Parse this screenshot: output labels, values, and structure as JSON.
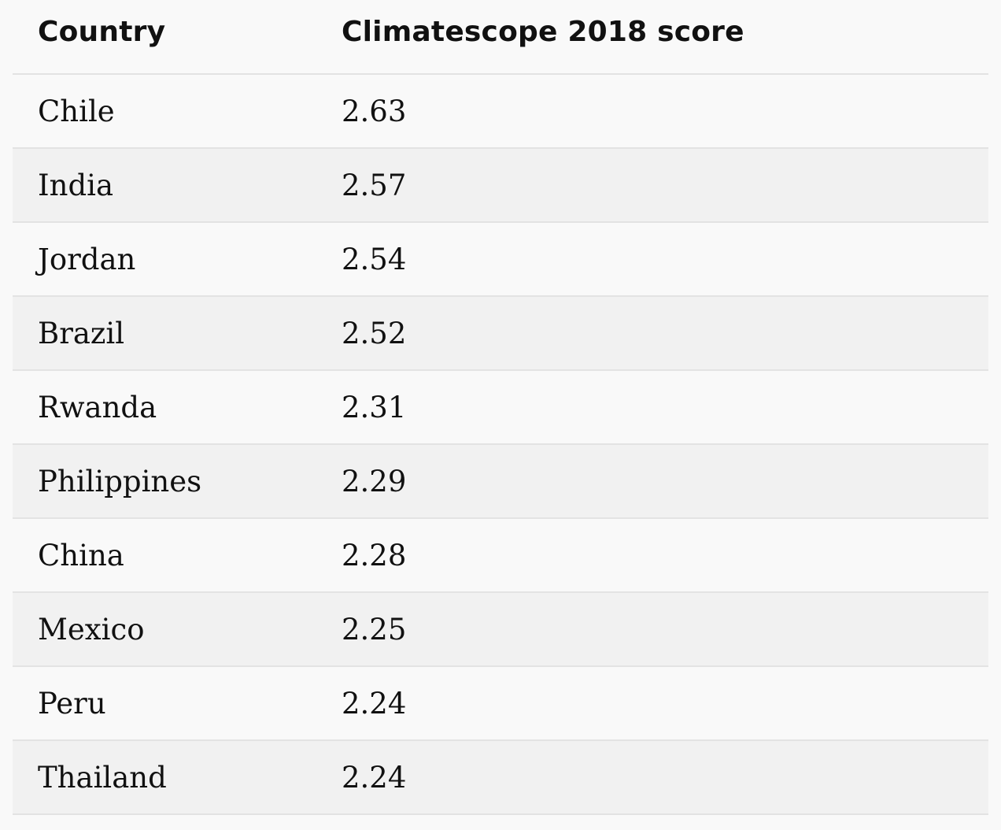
{
  "chart_data": {
    "type": "table",
    "columns": [
      "Country",
      "Climatescope 2018 score"
    ],
    "rows": [
      {
        "country": "Chile",
        "score": "2.63"
      },
      {
        "country": "India",
        "score": "2.57"
      },
      {
        "country": "Jordan",
        "score": "2.54"
      },
      {
        "country": "Brazil",
        "score": "2.52"
      },
      {
        "country": "Rwanda",
        "score": "2.31"
      },
      {
        "country": "Philippines",
        "score": "2.29"
      },
      {
        "country": "China",
        "score": "2.28"
      },
      {
        "country": "Mexico",
        "score": "2.25"
      },
      {
        "country": "Peru",
        "score": "2.24"
      },
      {
        "country": "Thailand",
        "score": "2.24"
      }
    ]
  }
}
